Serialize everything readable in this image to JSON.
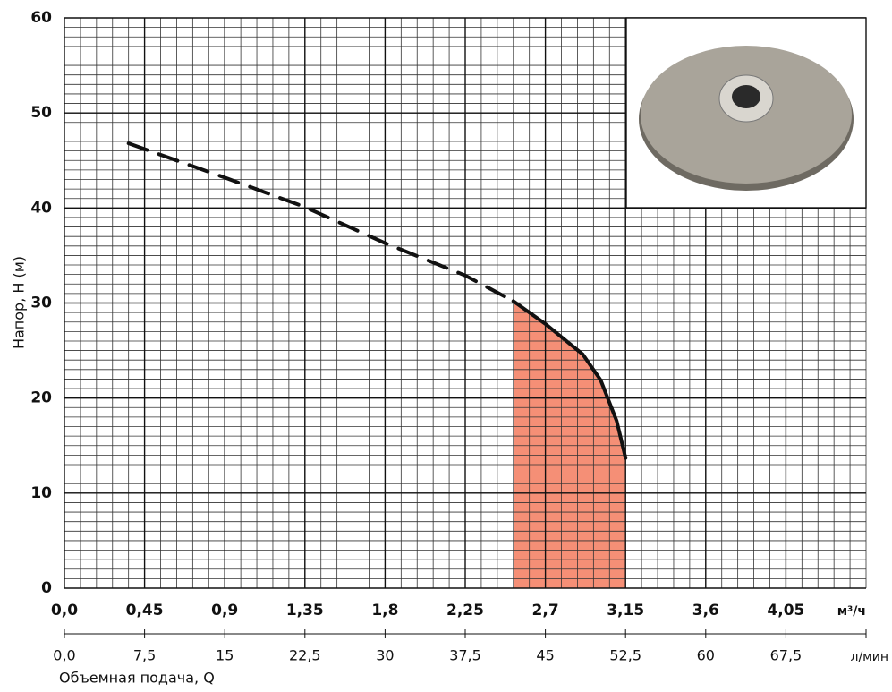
{
  "chart_data": {
    "type": "line",
    "ylabel": "Напор, Н (м)",
    "xlabel": "Объемная подача, Q",
    "x_unit": "м³/ч",
    "x2_unit": "л/мин",
    "xlim": [
      0,
      4.5
    ],
    "ylim": [
      0,
      60
    ],
    "x2lim": [
      0,
      75
    ],
    "xticks": [
      {
        "value": 0,
        "label": "0,0"
      },
      {
        "value": 0.45,
        "label": "0,45"
      },
      {
        "value": 0.9,
        "label": "0,9"
      },
      {
        "value": 1.35,
        "label": "1,35"
      },
      {
        "value": 1.8,
        "label": "1,8"
      },
      {
        "value": 2.25,
        "label": "2,25"
      },
      {
        "value": 2.7,
        "label": "2,7"
      },
      {
        "value": 3.15,
        "label": "3,15"
      },
      {
        "value": 3.6,
        "label": "3,6"
      },
      {
        "value": 4.05,
        "label": "4,05"
      }
    ],
    "x2ticks": [
      {
        "value": 0,
        "label": "0,0"
      },
      {
        "value": 7.5,
        "label": "7,5"
      },
      15,
      {
        "value": 22.5,
        "label": "22,5"
      },
      30,
      {
        "value": 37.5,
        "label": "37,5"
      },
      45,
      {
        "value": 52.5,
        "label": "52,5"
      },
      60,
      {
        "value": 67.5,
        "label": "67,5"
      }
    ],
    "yticks": [
      0,
      10,
      20,
      30,
      40,
      50,
      60
    ],
    "grid": true,
    "series": [
      {
        "style": "dashed",
        "color": "#111111",
        "x": [
          0.36,
          0.9,
          1.35,
          1.8,
          2.25,
          2.52
        ],
        "values": [
          46.8,
          43.2,
          40.1,
          36.3,
          32.9,
          30.2
        ]
      },
      {
        "style": "solid",
        "color": "#111111",
        "fill": "#f4866a",
        "x": [
          2.52,
          2.7,
          2.91,
          3.01,
          3.1,
          3.15
        ],
        "values": [
          30.2,
          27.8,
          24.6,
          21.9,
          17.6,
          13.7
        ]
      }
    ]
  }
}
